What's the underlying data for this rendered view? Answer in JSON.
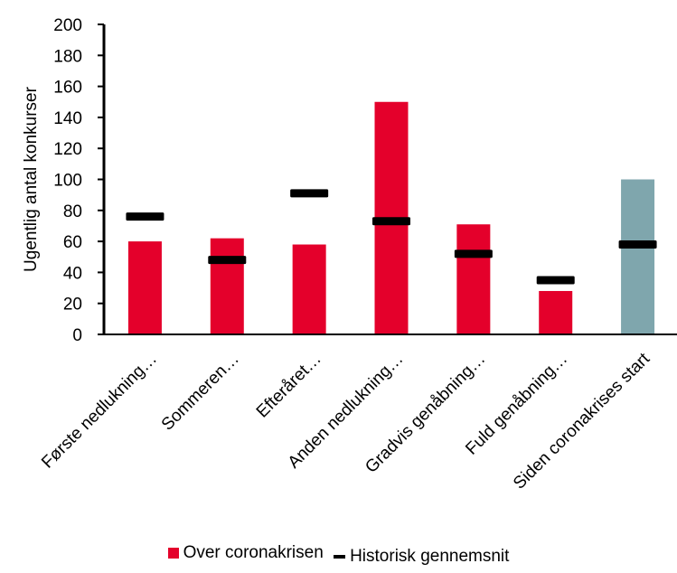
{
  "chart_data": {
    "type": "bar",
    "title": "",
    "xlabel": "",
    "ylabel": "Ugentlig antal konkurser",
    "ylim": [
      0,
      200
    ],
    "yticks": [
      0,
      20,
      40,
      60,
      80,
      100,
      120,
      140,
      160,
      180,
      200
    ],
    "grid": false,
    "legend_position": "bottom",
    "categories": [
      "Første nedlukning…",
      "Sommeren…",
      "Efteråret…",
      "Anden nedlukning…",
      "Gradvis genåbning…",
      "Fuld genåbning…",
      "Siden coronakrises start"
    ],
    "series": [
      {
        "name": "Over coronakrisen",
        "type": "bar",
        "color": "#E4002B",
        "values": [
          60,
          62,
          58,
          150,
          71,
          28,
          100
        ],
        "point_colors": [
          "#E4002B",
          "#E4002B",
          "#E4002B",
          "#E4002B",
          "#E4002B",
          "#E4002B",
          "#7FA6AD"
        ]
      },
      {
        "name": "Historisk gennemsnit",
        "type": "marker",
        "color": "#000000",
        "values": [
          76,
          48,
          91,
          73,
          52,
          35,
          58
        ]
      }
    ]
  }
}
